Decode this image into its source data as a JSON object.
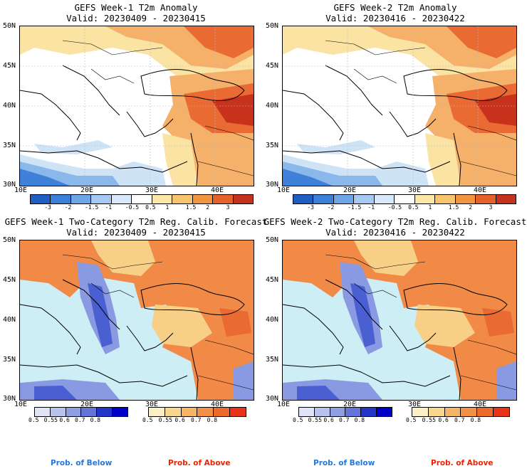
{
  "panels": [
    {
      "title": "GEFS Week-1 T2m Anomaly",
      "valid": "Valid: 20230409 - 20230415"
    },
    {
      "title": "GEFS Week-2 T2m Anomaly",
      "valid": "Valid: 20230416 - 20230422"
    },
    {
      "title": "GEFS Week-1 Two-Category T2m Reg. Calib. Forecast",
      "valid": "Valid: 20230409 - 20230415"
    },
    {
      "title": "GEFS Week-2 Two-Category T2m Reg. Calib. Forecast",
      "valid": "Valid: 20230416 - 20230422"
    }
  ],
  "axes": {
    "lat_labels": [
      "50N",
      "45N",
      "40N",
      "35N",
      "30N"
    ],
    "lon_labels": [
      "10E",
      "20E",
      "30E",
      "40E"
    ]
  },
  "anomaly_colorbar": {
    "labels": [
      "-3",
      "-2",
      "-1.5",
      "-1",
      "-0.5",
      "0.5",
      "1",
      "1.5",
      "2",
      "3"
    ],
    "colors": [
      "#1f5fc4",
      "#3b7fd9",
      "#6fa6e6",
      "#a5c9f0",
      "#d6e8f9",
      "#ffffff",
      "#fbe6a8",
      "#f6c46c",
      "#f1963f",
      "#e4622a",
      "#c5321f"
    ]
  },
  "prob_below": {
    "labels": [
      "0.5",
      "0.55",
      "0.6",
      "0.7",
      "0.8"
    ],
    "colors": [
      "#e0e4f6",
      "#b8c3ee",
      "#8f9fe4",
      "#6474d8",
      "#2136c9",
      "#0000cc"
    ],
    "caption": "Prob. of Below",
    "caption_color": "#2277dd"
  },
  "prob_above": {
    "labels": [
      "0.5",
      "0.55",
      "0.6",
      "0.7",
      "0.8"
    ],
    "colors": [
      "#fbf0c4",
      "#f8d68c",
      "#f5b466",
      "#f19048",
      "#ec6a2a",
      "#e8321a"
    ],
    "caption": "Prob. of Above",
    "caption_color": "#ee2200"
  },
  "map_colors": {
    "sea": "#cdeef5",
    "land_neutral": "#ffffff",
    "warm_light": "#fbe3a4",
    "warm_mid": "#f5b06a",
    "warm_strong": "#ea6a33",
    "warm_max": "#c8321c",
    "cool_light": "#cfe3f7",
    "cool_mid": "#8bb8ea",
    "cool_strong": "#3f80d8",
    "prob_above_mid": "#f08a46",
    "prob_above_light": "#f8cf86",
    "prob_below_mid": "#8a9ae2",
    "prob_below_strong": "#4a5fd2"
  }
}
